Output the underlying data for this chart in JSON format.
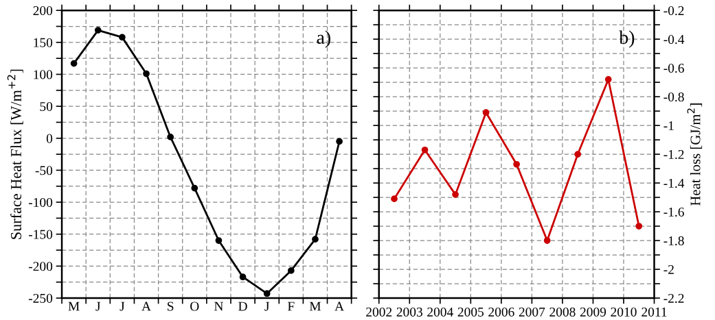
{
  "chart_data": [
    {
      "type": "line",
      "ylabel": "Surface Heat Flux [W/m$^{+2}$]",
      "annotations": [
        "a)"
      ],
      "marker": "circle",
      "grid": true,
      "categories": [
        "M",
        "J",
        "J",
        "A",
        "S",
        "O",
        "N",
        "D",
        "J",
        "F",
        "M",
        "A"
      ],
      "series": [
        {
          "color": "#000000",
          "values": [
            117,
            169,
            158,
            101,
            2,
            -78,
            -160,
            -217,
            -243,
            -207,
            -158,
            -5
          ]
        }
      ],
      "ylim": [
        -250,
        200
      ],
      "yticks": [
        -250,
        {
          "value": -225,
          "label": null
        },
        -200,
        {
          "value": -175,
          "label": null
        },
        -150,
        {
          "value": -125,
          "label": null
        },
        -100,
        {
          "value": -75,
          "label": null
        },
        -50,
        {
          "value": -25,
          "label": null
        },
        0,
        {
          "value": 25,
          "label": null
        },
        50,
        {
          "value": 75,
          "label": null
        },
        100,
        {
          "value": 125,
          "label": null
        },
        150,
        {
          "value": 175,
          "label": null
        },
        200
      ]
    },
    {
      "type": "line",
      "y2label": "Heat loss [GJ/m$^{2}$]",
      "annotations": [
        "b)"
      ],
      "marker": "circle",
      "grid": true,
      "x": [
        2002.5,
        2003.5,
        2004.5,
        2005.5,
        2006.5,
        2007.5,
        2008.5,
        2009.5,
        2010.5
      ],
      "series": [
        {
          "color": "#cc0000",
          "axis": "y2",
          "values": [
            -1.51,
            -1.17,
            -1.48,
            -0.91,
            -1.27,
            -1.8,
            -1.2,
            -0.68,
            -1.7
          ]
        }
      ],
      "xlim": [
        2002,
        2011
      ],
      "xticks": [
        2002,
        2003,
        2004,
        2005,
        2006,
        2007,
        2008,
        2009,
        2010,
        2011
      ],
      "y2lim": [
        -2.2,
        -0.2
      ],
      "y2ticks": [
        -2.2,
        {
          "value": -2.1,
          "label": null
        },
        -2,
        {
          "value": -1.9,
          "label": null
        },
        -1.8,
        {
          "value": -1.7,
          "label": null
        },
        -1.6,
        {
          "value": -1.5,
          "label": null
        },
        -1.4,
        {
          "value": -1.3,
          "label": null
        },
        -1.2,
        {
          "value": -1.1,
          "label": null
        },
        -1,
        {
          "value": -0.9,
          "label": null
        },
        -0.8,
        {
          "value": -0.7,
          "label": null
        },
        -0.6,
        {
          "value": -0.5,
          "label": null
        },
        -0.4,
        {
          "value": -0.3,
          "label": null
        },
        -0.2
      ]
    }
  ]
}
